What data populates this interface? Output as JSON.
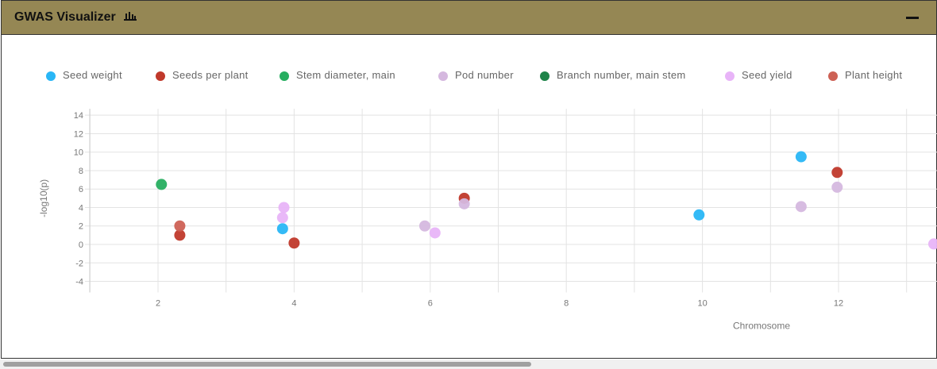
{
  "header": {
    "title": "GWAS Visualizer",
    "icon": "bar-chart-icon",
    "collapse_icon": "minimize-icon"
  },
  "colors": {
    "header_bg": "#958754"
  },
  "chart_data": {
    "type": "scatter",
    "xlabel": "Chromosome",
    "ylabel": "-log10(p)",
    "xlim": [
      1,
      13.3
    ],
    "ylim": [
      -4,
      14
    ],
    "x_ticks": [
      2,
      4,
      6,
      8,
      10,
      12
    ],
    "y_ticks": [
      -4,
      -2,
      0,
      2,
      4,
      6,
      8,
      10,
      12,
      14
    ],
    "grid": true,
    "legend_position": "top",
    "series": [
      {
        "name": "Seed weight",
        "color": "#29b6f6",
        "points": [
          [
            3.83,
            1.7
          ],
          [
            9.95,
            3.2
          ],
          [
            11.45,
            9.5
          ]
        ]
      },
      {
        "name": "Seeds per plant",
        "color": "#c0392b",
        "points": [
          [
            2.32,
            1.0
          ],
          [
            4.0,
            0.15
          ],
          [
            6.5,
            5.0
          ],
          [
            11.98,
            7.8
          ]
        ]
      },
      {
        "name": "Stem diameter, main",
        "color": "#27ae60",
        "points": [
          [
            2.05,
            6.5
          ]
        ]
      },
      {
        "name": "Pod number",
        "color": "#d5b8df",
        "points": [
          [
            5.92,
            2.0
          ],
          [
            6.5,
            4.4
          ],
          [
            11.45,
            4.1
          ],
          [
            11.98,
            6.2
          ]
        ]
      },
      {
        "name": "Branch number, main stem",
        "color": "#1e8449",
        "points": []
      },
      {
        "name": "Seed yield",
        "color": "#e8b4f8",
        "points": [
          [
            3.83,
            2.9
          ],
          [
            3.85,
            4.0
          ],
          [
            6.07,
            1.25
          ],
          [
            13.4,
            0.05
          ]
        ]
      },
      {
        "name": "Plant height",
        "color": "#cd6155",
        "points": [
          [
            2.32,
            2.0
          ]
        ]
      }
    ]
  }
}
